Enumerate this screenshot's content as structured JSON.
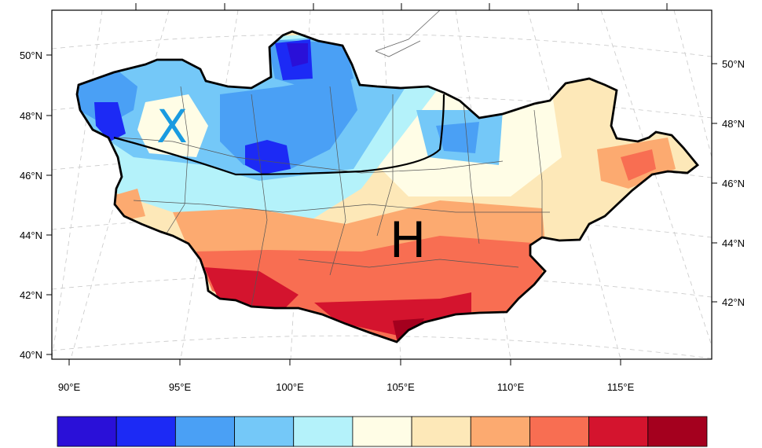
{
  "map": {
    "lat_labels_left": [
      "50°N",
      "48°N",
      "46°N",
      "44°N",
      "42°N",
      "40°N"
    ],
    "lat_labels_right": [
      "50°N",
      "48°N",
      "46°N",
      "44°N",
      "42°N"
    ],
    "lon_labels": [
      "90°E",
      "95°E",
      "100°E",
      "105°E",
      "110°E",
      "115°E"
    ],
    "markers": {
      "cold_center": {
        "label": "X",
        "color": "#1a9be0"
      },
      "warm_center": {
        "label": "H",
        "color": "#000000"
      }
    }
  },
  "colorbar": {
    "colors": [
      "#2a10d8",
      "#1c2af5",
      "#4aa0f5",
      "#74c8f8",
      "#b4f2fa",
      "#fffde6",
      "#fde8b8",
      "#fcaa70",
      "#f86e52",
      "#d4142e",
      "#a4001e"
    ]
  }
}
